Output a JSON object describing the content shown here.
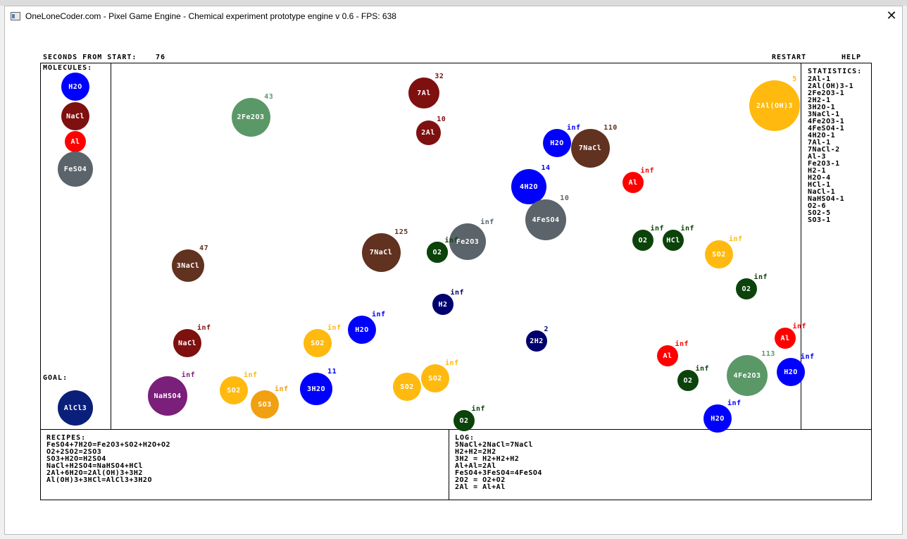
{
  "window": {
    "title": "OneLoneCoder.com - Pixel Game Engine - Chemical experiment prototype engine v 0.6 - FPS: 638",
    "close_symbol": "✕"
  },
  "header": {
    "seconds_label": "SECONDS FROM START:",
    "seconds_value": "76",
    "restart_label": "RESTART",
    "help_label": "HELP"
  },
  "left_panel": {
    "molecules_label": "MOLECULES:",
    "molecules": [
      {
        "name": "H2O",
        "color": "#0000ff"
      },
      {
        "name": "NaCl",
        "color": "#7f1010"
      },
      {
        "name": "Al",
        "color": "#ff0000"
      },
      {
        "name": "FeSO4",
        "color": "#5a646a"
      }
    ],
    "goal_label": "GOAL:",
    "goal": {
      "name": "AlCl3",
      "color": "#0a1f7a"
    }
  },
  "field_molecules": [
    {
      "label": "2Fe2O3",
      "count": "43",
      "color": "#5b9867"
    },
    {
      "label": "7Al",
      "count": "32",
      "color": "#7f1010"
    },
    {
      "label": "2Al",
      "count": "10",
      "color": "#7f1010"
    },
    {
      "label": "H2O",
      "count": "inf",
      "color": "#0000ff"
    },
    {
      "label": "7NaCl",
      "count": "110",
      "color": "#613220"
    },
    {
      "label": "Al",
      "count": "inf",
      "color": "#ff0000"
    },
    {
      "label": "2Al(OH)3",
      "count": "5",
      "color": "#ffb90f"
    },
    {
      "label": "4H2O",
      "count": "14",
      "color": "#0000ff"
    },
    {
      "label": "4FeSO4",
      "count": "10",
      "color": "#5a646a"
    },
    {
      "label": "Fe2O3",
      "count": "inf",
      "color": "#5a646a"
    },
    {
      "label": "O2",
      "count": "inf",
      "color": "#0b430b"
    },
    {
      "label": "O2",
      "count": "inf",
      "color": "#0b430b"
    },
    {
      "label": "HCl",
      "count": "inf",
      "color": "#0b430b"
    },
    {
      "label": "SO2",
      "count": "inf",
      "color": "#ffb90f"
    },
    {
      "label": "7NaCl",
      "count": "125",
      "color": "#613220"
    },
    {
      "label": "O2",
      "count": "",
      "color": "#0b430b"
    },
    {
      "label": "3NaCl",
      "count": "47",
      "color": "#613220"
    },
    {
      "label": "O2",
      "count": "inf",
      "color": "#0b430b"
    },
    {
      "label": "H2",
      "count": "inf",
      "color": "#00006e"
    },
    {
      "label": "H2O",
      "count": "inf",
      "color": "#0000ff"
    },
    {
      "label": "SO2",
      "count": "inf",
      "color": "#ffb90f"
    },
    {
      "label": "NaCl",
      "count": "inf",
      "color": "#7f1010"
    },
    {
      "label": "2H2",
      "count": "2",
      "color": "#00006e"
    },
    {
      "label": "Al",
      "count": "inf",
      "color": "#ff0000"
    },
    {
      "label": "Al",
      "count": "inf",
      "color": "#ff0000"
    },
    {
      "label": "4Fe2O3",
      "count": "113",
      "color": "#5b9867"
    },
    {
      "label": "H2O",
      "count": "inf",
      "color": "#0000ff"
    },
    {
      "label": "O2",
      "count": "inf",
      "color": "#0b430b"
    },
    {
      "label": "NaHSO4",
      "count": "inf",
      "color": "#7a1f7a"
    },
    {
      "label": "SO2",
      "count": "inf",
      "color": "#ffb90f"
    },
    {
      "label": "SO3",
      "count": "inf",
      "color": "#f0a010"
    },
    {
      "label": "3H2O",
      "count": "11",
      "color": "#0000ff"
    },
    {
      "label": "SO2",
      "count": "",
      "color": "#ffb90f"
    },
    {
      "label": "SO2",
      "count": "inf",
      "color": "#ffb90f"
    },
    {
      "label": "O2",
      "count": "inf",
      "color": "#0b430b"
    },
    {
      "label": "H2O",
      "count": "inf",
      "color": "#0000ff"
    }
  ],
  "statistics": {
    "label": "STATISTICS:",
    "items": [
      "2Al-1",
      "2Al(OH)3-1",
      "2Fe2O3-1",
      "2H2-1",
      "3H2O-1",
      "3NaCl-1",
      "4Fe2O3-1",
      "4FeSO4-1",
      "4H2O-1",
      "7Al-1",
      "7NaCl-2",
      "Al-3",
      "Fe2O3-1",
      "H2-1",
      "H2O-4",
      "HCl-1",
      "NaCl-1",
      "NaHSO4-1",
      "O2-6",
      "SO2-5",
      "SO3-1"
    ]
  },
  "recipes": {
    "label": "RECIPES:",
    "items": [
      "FeSO4+7H2O=Fe2O3+SO2+H2O+O2",
      "O2+2SO2=2SO3",
      "SO3+H2O=H2SO4",
      "NaCl+H2SO4=NaHSO4+HCl",
      "2Al+6H2O=2Al(OH)3+3H2",
      "Al(OH)3+3HCl=AlCl3+3H2O"
    ]
  },
  "log": {
    "label": "LOG:",
    "items": [
      "5NaCl+2NaCl=7NaCl",
      "H2+H2=2H2",
      "3H2 = H2+H2+H2",
      "Al+Al=2Al",
      "FeSO4+3FeSO4=4FeSO4",
      "2O2 = O2+O2",
      "2Al = Al+Al"
    ]
  }
}
